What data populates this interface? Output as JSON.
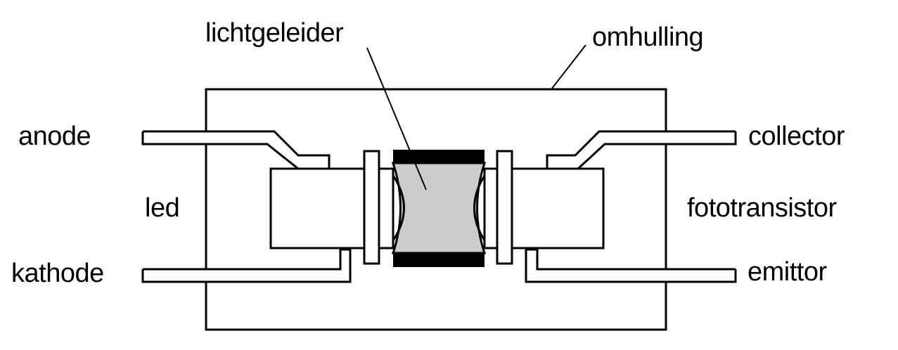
{
  "labels": {
    "light_guide": "lichtgeleider",
    "housing": "omhulling",
    "anode": "anode",
    "cathode": "kathode",
    "led": "led",
    "collector": "collector",
    "phototransistor": "fototransistor",
    "emitter": "emittor"
  },
  "colors": {
    "line": "#000000",
    "light_guide_fill": "#cccccc",
    "background": "#ffffff"
  }
}
